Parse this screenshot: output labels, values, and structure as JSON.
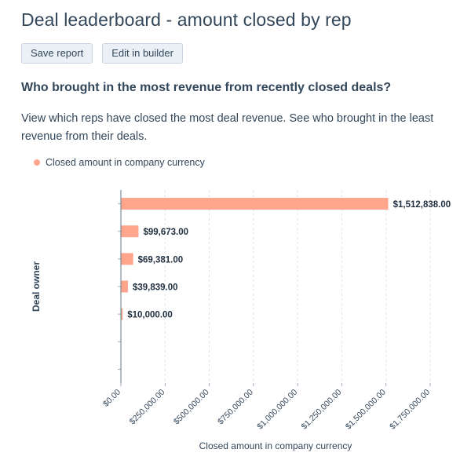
{
  "header": {
    "title": "Deal leaderboard - amount closed by rep",
    "save_label": "Save report",
    "edit_label": "Edit in builder"
  },
  "question": "Who brought in the most revenue from recently closed deals?",
  "description": "View which reps have closed the most deal revenue. See who brought in the least revenue from their deals.",
  "legend": {
    "label": "Closed amount in company currency",
    "color": "#ffa58c"
  },
  "chart_data": {
    "type": "bar",
    "orientation": "horizontal",
    "categories": [
      "",
      "",
      "",
      "",
      "",
      "",
      ""
    ],
    "series": [
      {
        "name": "Closed amount in company currency",
        "values": [
          1512838,
          99673,
          69381,
          39839,
          10000,
          0,
          0
        ],
        "labels": [
          "$1,512,838.00",
          "$99,673.00",
          "$69,381.00",
          "$39,839.00",
          "$10,000.00",
          "",
          ""
        ]
      }
    ],
    "xlabel": "Closed amount in company currency",
    "ylabel": "Deal owner",
    "xlim": [
      0,
      1750000
    ],
    "xticks": [
      0,
      250000,
      500000,
      750000,
      1000000,
      1250000,
      1500000,
      1750000
    ],
    "xtick_labels": [
      "$0.00",
      "$250,000.00",
      "$500,000.00",
      "$750,000.00",
      "$1,000,000.00",
      "$1,250,000.00",
      "$1,500,000.00",
      "$1,750,000.00"
    ],
    "grid": "vertical dashed",
    "legend_position": "top-left",
    "bar_color": "#ffa58c"
  }
}
